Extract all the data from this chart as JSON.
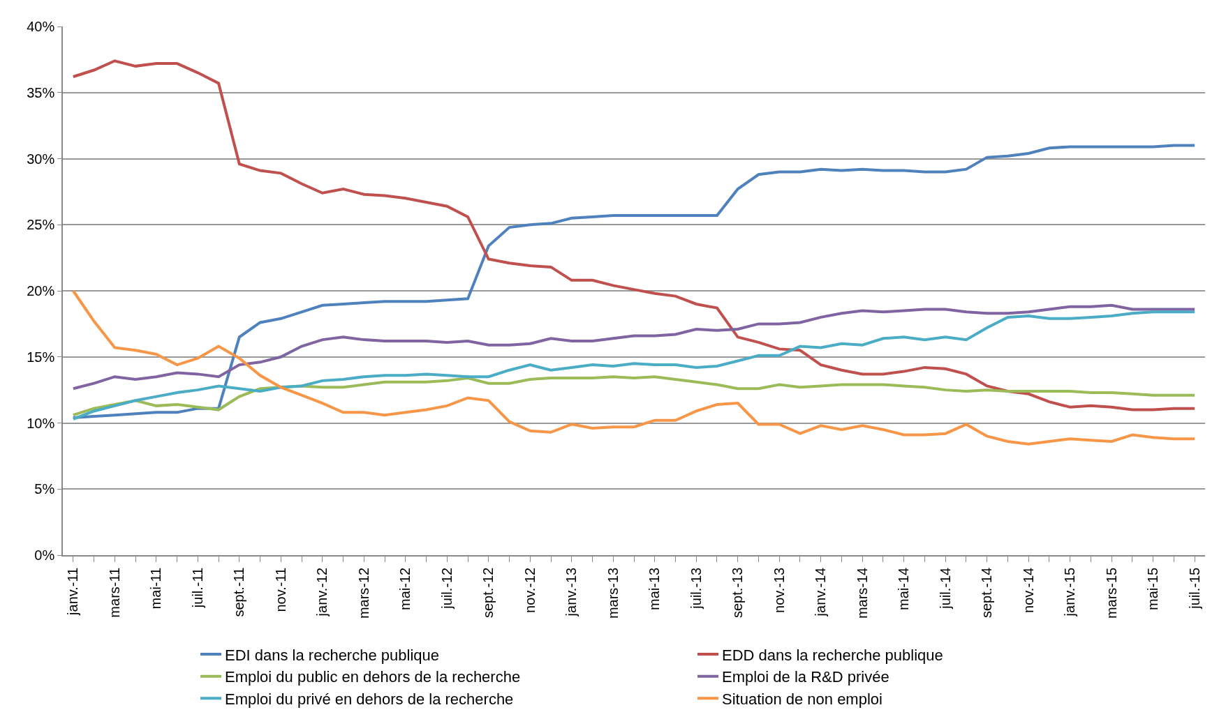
{
  "chart_data": {
    "type": "line",
    "categories": [
      "janv.-11",
      null,
      "mars-11",
      null,
      "mai-11",
      null,
      "juil.-11",
      null,
      "sept.-11",
      null,
      "nov.-11",
      null,
      "janv.-12",
      null,
      "mars-12",
      null,
      "mai-12",
      null,
      "juil.-12",
      null,
      "sept.-12",
      null,
      "nov.-12",
      null,
      "janv.-13",
      null,
      "mars-13",
      null,
      "mai-13",
      null,
      "juil.-13",
      null,
      "sept.-13",
      null,
      "nov.-13",
      null,
      "janv.-14",
      null,
      "mars-14",
      null,
      "mai-14",
      null,
      "juil.-14",
      null,
      "sept.-14",
      null,
      "nov.-14",
      null,
      "janv.-15",
      null,
      "mars-15",
      null,
      "mai-15",
      null,
      "juil.-15"
    ],
    "series": [
      {
        "name": "EDI dans la recherche publique",
        "color": "#4f81bd",
        "values": [
          10.4,
          10.5,
          10.6,
          10.7,
          10.8,
          10.8,
          11.1,
          11.1,
          16.5,
          17.6,
          17.9,
          18.4,
          18.9,
          19.0,
          19.1,
          19.2,
          19.2,
          19.2,
          19.3,
          19.4,
          23.4,
          24.8,
          25.0,
          25.1,
          25.5,
          25.6,
          25.7,
          25.7,
          25.7,
          25.7,
          25.7,
          25.7,
          27.7,
          28.8,
          29.0,
          29.0,
          29.2,
          29.1,
          29.2,
          29.1,
          29.1,
          29.0,
          29.0,
          29.2,
          30.1,
          30.2,
          30.4,
          30.8,
          30.9,
          30.9,
          30.9,
          30.9,
          30.9,
          31.0,
          31.0
        ]
      },
      {
        "name": "EDD dans la recherche publique",
        "color": "#c0504d",
        "values": [
          36.2,
          36.7,
          37.4,
          37.0,
          37.2,
          37.2,
          36.5,
          35.7,
          29.6,
          29.1,
          28.9,
          28.1,
          27.4,
          27.7,
          27.3,
          27.2,
          27.0,
          26.7,
          26.4,
          25.6,
          22.4,
          22.1,
          21.9,
          21.8,
          20.8,
          20.8,
          20.4,
          20.1,
          19.8,
          19.6,
          19.0,
          18.7,
          16.5,
          16.1,
          15.6,
          15.5,
          14.4,
          14.0,
          13.7,
          13.7,
          13.9,
          14.2,
          14.1,
          13.7,
          12.8,
          12.4,
          12.2,
          11.6,
          11.2,
          11.3,
          11.2,
          11.0,
          11.0,
          11.1,
          11.1
        ]
      },
      {
        "name": "Emploi du public en dehors de la recherche",
        "color": "#9bbb59",
        "values": [
          10.6,
          11.1,
          11.4,
          11.7,
          11.3,
          11.4,
          11.2,
          11.0,
          12.0,
          12.6,
          12.7,
          12.8,
          12.7,
          12.7,
          12.9,
          13.1,
          13.1,
          13.1,
          13.2,
          13.4,
          13.0,
          13.0,
          13.3,
          13.4,
          13.4,
          13.4,
          13.5,
          13.4,
          13.5,
          13.3,
          13.1,
          12.9,
          12.6,
          12.6,
          12.9,
          12.7,
          12.8,
          12.9,
          12.9,
          12.9,
          12.8,
          12.7,
          12.5,
          12.4,
          12.5,
          12.4,
          12.4,
          12.4,
          12.4,
          12.3,
          12.3,
          12.2,
          12.1,
          12.1,
          12.1
        ]
      },
      {
        "name": "Emploi de la R&D privée",
        "color": "#8064a2",
        "values": [
          12.6,
          13.0,
          13.5,
          13.3,
          13.5,
          13.8,
          13.7,
          13.5,
          14.4,
          14.6,
          15.0,
          15.8,
          16.3,
          16.5,
          16.3,
          16.2,
          16.2,
          16.2,
          16.1,
          16.2,
          15.9,
          15.9,
          16.0,
          16.4,
          16.2,
          16.2,
          16.4,
          16.6,
          16.6,
          16.7,
          17.1,
          17.0,
          17.1,
          17.5,
          17.5,
          17.6,
          18.0,
          18.3,
          18.5,
          18.4,
          18.5,
          18.6,
          18.6,
          18.4,
          18.3,
          18.3,
          18.4,
          18.6,
          18.8,
          18.8,
          18.9,
          18.6,
          18.6,
          18.6,
          18.6
        ]
      },
      {
        "name": "Emploi du privé en dehors de la recherche",
        "color": "#4bacc6",
        "values": [
          10.3,
          10.9,
          11.3,
          11.7,
          12.0,
          12.3,
          12.5,
          12.8,
          12.6,
          12.4,
          12.7,
          12.8,
          13.2,
          13.3,
          13.5,
          13.6,
          13.6,
          13.7,
          13.6,
          13.5,
          13.5,
          14.0,
          14.4,
          14.0,
          14.2,
          14.4,
          14.3,
          14.5,
          14.4,
          14.4,
          14.2,
          14.3,
          14.7,
          15.1,
          15.1,
          15.8,
          15.7,
          16.0,
          15.9,
          16.4,
          16.5,
          16.3,
          16.5,
          16.3,
          17.2,
          18.0,
          18.1,
          17.9,
          17.9,
          18.0,
          18.1,
          18.3,
          18.4,
          18.4,
          18.4
        ]
      },
      {
        "name": "Situation de non emploi",
        "color": "#f79646",
        "values": [
          20.0,
          17.7,
          15.7,
          15.5,
          15.2,
          14.4,
          14.9,
          15.8,
          14.9,
          13.6,
          12.7,
          12.1,
          11.5,
          10.8,
          10.8,
          10.6,
          10.8,
          11.0,
          11.3,
          11.9,
          11.7,
          10.1,
          9.4,
          9.3,
          9.9,
          9.6,
          9.7,
          9.7,
          10.2,
          10.2,
          10.9,
          11.4,
          11.5,
          9.9,
          9.9,
          9.2,
          9.8,
          9.5,
          9.8,
          9.5,
          9.1,
          9.1,
          9.2,
          9.9,
          9.0,
          8.6,
          8.4,
          8.6,
          8.8,
          8.7,
          8.6,
          9.1,
          8.9,
          8.8,
          8.8
        ]
      }
    ],
    "ylim": [
      0,
      40
    ],
    "yticks": [
      {
        "value": 0,
        "label": "0%"
      },
      {
        "value": 5,
        "label": "5%"
      },
      {
        "value": 10,
        "label": "10%"
      },
      {
        "value": 15,
        "label": "15%"
      },
      {
        "value": 20,
        "label": "20%"
      },
      {
        "value": 25,
        "label": "25%"
      },
      {
        "value": 30,
        "label": "30%"
      },
      {
        "value": 35,
        "label": "35%"
      },
      {
        "value": 40,
        "label": "40%"
      }
    ],
    "grid": "y",
    "legend": "bottom",
    "marker": "none",
    "line_style": "solid"
  }
}
